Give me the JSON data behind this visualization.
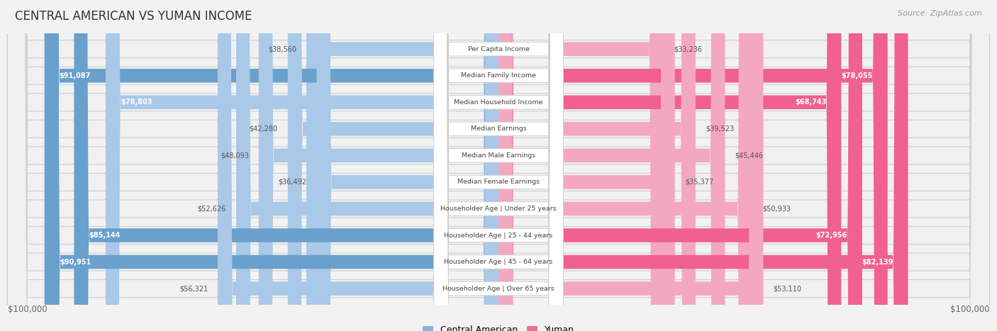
{
  "title": "CENTRAL AMERICAN VS YUMAN INCOME",
  "source": "Source: ZipAtlas.com",
  "max_value": 100000,
  "blue_color": "#8ab4d9",
  "pink_color": "#f07098",
  "blue_light": "#adc8e8",
  "pink_light": "#f4a0b8",
  "bg_color": "#f2f2f2",
  "row_bg_light": "#e8e8e8",
  "row_bg_white": "#f9f9f9",
  "categories": [
    "Per Capita Income",
    "Median Family Income",
    "Median Household Income",
    "Median Earnings",
    "Median Male Earnings",
    "Median Female Earnings",
    "Householder Age | Under 25 years",
    "Householder Age | 25 - 44 years",
    "Householder Age | 45 - 64 years",
    "Householder Age | Over 65 years"
  ],
  "central_american": [
    38560,
    91087,
    78803,
    42280,
    48093,
    36492,
    52626,
    85144,
    90951,
    56321
  ],
  "yuman": [
    33236,
    78055,
    68743,
    39523,
    45446,
    35377,
    50933,
    72956,
    82139,
    53110
  ],
  "legend_blue": "Central American",
  "legend_pink": "Yuman",
  "xlabel_left": "$100,000",
  "xlabel_right": "$100,000"
}
